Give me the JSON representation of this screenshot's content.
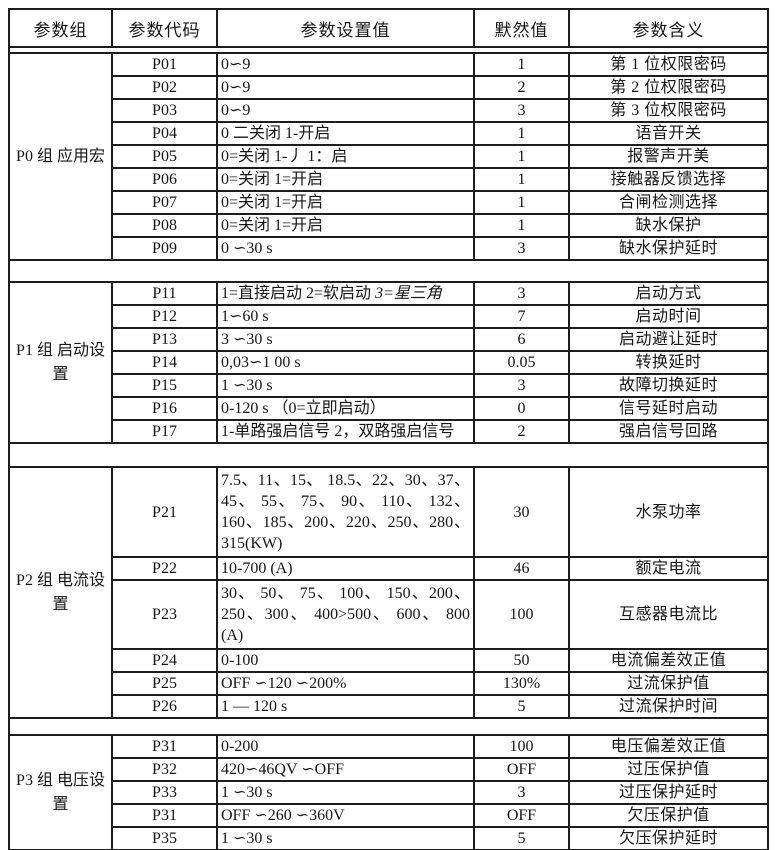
{
  "table": {
    "headers": [
      "参数组",
      "参数代码",
      "参数设置值",
      "默然值",
      "参数含义"
    ],
    "groups": [
      {
        "label": "P0 组 应用宏",
        "rows": [
          {
            "code": "P01",
            "setting": "0∽9",
            "default": "1",
            "meaning": "第 1 位权限密码"
          },
          {
            "code": "P02",
            "setting": "0∽9",
            "default": "2",
            "meaning": "第 2 位权限密码"
          },
          {
            "code": "P03",
            "setting": "0∽9",
            "default": "3",
            "meaning": "第 3 位权限密码"
          },
          {
            "code": "P04",
            "setting": "0 二关闭 1-开启",
            "default": "1",
            "meaning": "语音开关"
          },
          {
            "code": "P05",
            "setting": "0=关闭 1-丿 1：启",
            "default": "1",
            "meaning": "报警声开美"
          },
          {
            "code": "P06",
            "setting": "0=关闭 1=开启",
            "default": "1",
            "meaning": "接触器反馈选择"
          },
          {
            "code": "P07",
            "setting": "0=关闭 1=开启",
            "default": "1",
            "meaning": "合闸检测选择"
          },
          {
            "code": "P08",
            "setting": "0=关闭 1=开启",
            "default": "1",
            "meaning": "缺水保护"
          },
          {
            "code": "P09",
            "setting": "0 ∽30 s",
            "default": "3",
            "meaning": "缺水保护延时"
          }
        ]
      },
      {
        "label": "P1 组 启动设置",
        "rows": [
          {
            "code": "P11",
            "setting": "1=直接启动 2=软启动 ",
            "setting_italic": "3=星三角",
            "default": "3",
            "meaning": "启动方式"
          },
          {
            "code": "P12",
            "setting": "1∽60 s",
            "default": "7",
            "meaning": "启动时间"
          },
          {
            "code": "P13",
            "setting": "3 ∽30 s",
            "default": "6",
            "meaning": "启动避让延时"
          },
          {
            "code": "P14",
            "setting": "0,03∽1 00 s",
            "default": "0.05",
            "meaning": "转换延时"
          },
          {
            "code": "P15",
            "setting": "1 ∽30 s",
            "default": "3",
            "meaning": "故障切换延时"
          },
          {
            "code": "P16",
            "setting": "0-120 s （0=立即启动）",
            "default": "0",
            "meaning": "信号延时启动"
          },
          {
            "code": "P17",
            "setting": "1-单路强启信号 2，双路强启信号",
            "default": "2",
            "meaning": "强启信号回路"
          }
        ]
      },
      {
        "label": "P2 组 电流设置",
        "rows": [
          {
            "code": "P21",
            "setting": "7.5、11、15、 18.5、22、30、37、45、 55、 75、 90、 110、 132、160、185、200、220、250、280、315(KW)",
            "default": "30",
            "meaning": "水泵功率"
          },
          {
            "code": "P22",
            "setting": "10-700 (A)",
            "default": "46",
            "meaning": "额定电流"
          },
          {
            "code": "P23",
            "setting": "30、 50、 75、 100、 150、200、250、300、 400>500、 600、 800 (A)",
            "default": "100",
            "meaning": "互感器电流比"
          },
          {
            "code": "P24",
            "setting": "0-100",
            "default": "50",
            "meaning": "电流偏差效正值"
          },
          {
            "code": "P25",
            "setting": "OFF ∽120 ∽200%",
            "default": "130%",
            "meaning": "过流保护值"
          },
          {
            "code": "P26",
            "setting": "1 — 120 s",
            "default": "5",
            "meaning": "过流保护时间"
          }
        ]
      },
      {
        "label": "P3 组 电压设置",
        "rows": [
          {
            "code": "P31",
            "setting": "0-200",
            "default": "100",
            "meaning": "电压偏差效正值"
          },
          {
            "code": "P32",
            "setting": "420∽46QV ∽OFF",
            "default": "OFF",
            "meaning": "过压保护值"
          },
          {
            "code": "P33",
            "setting": "1 ∽30 s",
            "default": "3",
            "meaning": "过压保护延时"
          },
          {
            "code": "P31",
            "setting": "OFF ∽260 ∽360V",
            "default": "OFF",
            "meaning": "欠压保护值"
          },
          {
            "code": "P35",
            "setting": "1 ∽30 s",
            "default": "5",
            "meaning": "欠压保护延时"
          }
        ]
      }
    ]
  }
}
